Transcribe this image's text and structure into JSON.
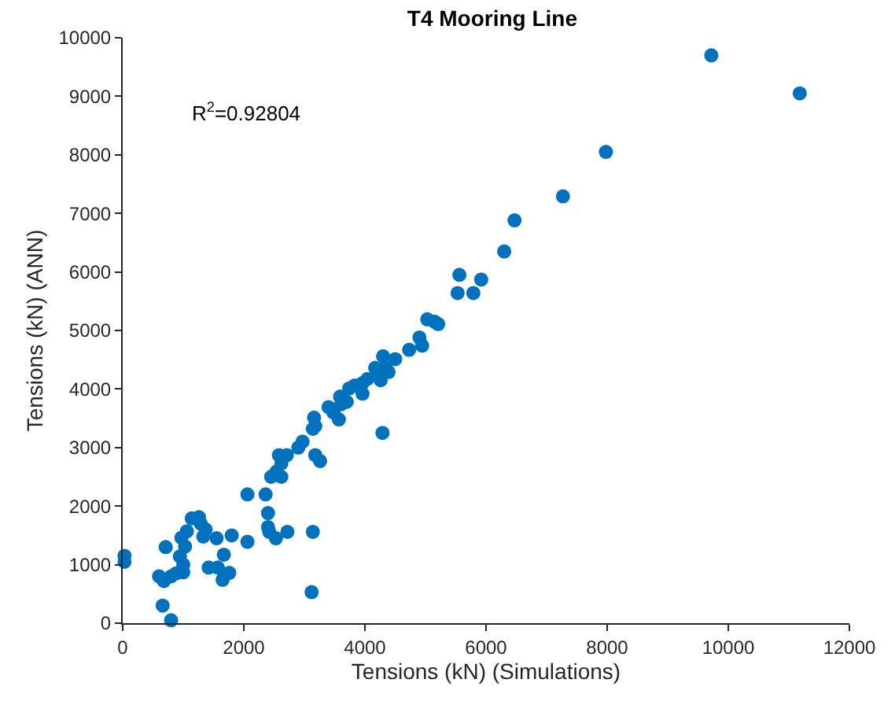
{
  "chart_data": {
    "type": "scatter",
    "title": "T4 Mooring Line",
    "xlabel": "Tensions (kN) (Simulations)",
    "ylabel": "Tensions (kN) (ANN)",
    "annotations": [
      "R$^{2}$=0.92804"
    ],
    "x": [
      30,
      30,
      660,
      800,
      600,
      680,
      710,
      800,
      880,
      1000,
      945,
      1000,
      1030,
      970,
      1060,
      1140,
      1260,
      1290,
      1370,
      1330,
      1550,
      1420,
      1570,
      1670,
      1650,
      1760,
      1800,
      2060,
      2060,
      2360,
      2400,
      2400,
      2420,
      2530,
      2720,
      3140,
      3120,
      9720,
      11180,
      7980,
      7270,
      6470,
      6300,
      5560,
      5920,
      5530,
      5790,
      5030,
      5150,
      5210,
      4900,
      4945,
      4730,
      4500,
      4300,
      4340,
      4210,
      4260,
      4390,
      4170,
      4040,
      3960,
      3830,
      3740,
      3960,
      3590,
      3700,
      3610,
      3400,
      3480,
      3570,
      3160,
      3180,
      3140,
      2970,
      2900,
      4290,
      3180,
      3260,
      2580,
      2710,
      2620,
      2450,
      2620,
      2540
    ],
    "values": [
      1150,
      1050,
      300,
      50,
      800,
      720,
      1300,
      800,
      850,
      870,
      1140,
      1000,
      1310,
      1460,
      1570,
      1790,
      1810,
      1700,
      1600,
      1480,
      1450,
      950,
      950,
      1170,
      740,
      860,
      1500,
      2200,
      1390,
      2200,
      1880,
      1640,
      1560,
      1450,
      1560,
      1560,
      530,
      9700,
      9050,
      8050,
      7290,
      6880,
      6350,
      5950,
      5870,
      5640,
      5640,
      5190,
      5150,
      5110,
      4880,
      4740,
      4670,
      4510,
      4560,
      4360,
      4300,
      4150,
      4290,
      4360,
      4170,
      4100,
      4060,
      4010,
      3920,
      3870,
      3780,
      3740,
      3690,
      3600,
      3480,
      3510,
      3370,
      3320,
      3100,
      3000,
      3250,
      2870,
      2770,
      2870,
      2870,
      2730,
      2500,
      2500,
      2590
    ],
    "color": "#0072bd",
    "marker": "circle",
    "xlim": [
      0,
      12000
    ],
    "xticks": [
      0,
      2000,
      4000,
      6000,
      8000,
      10000,
      12000
    ],
    "ylim": [
      0,
      10000
    ],
    "yticks": [
      0,
      1000,
      2000,
      3000,
      4000,
      5000,
      6000,
      7000,
      8000,
      9000,
      10000
    ]
  }
}
